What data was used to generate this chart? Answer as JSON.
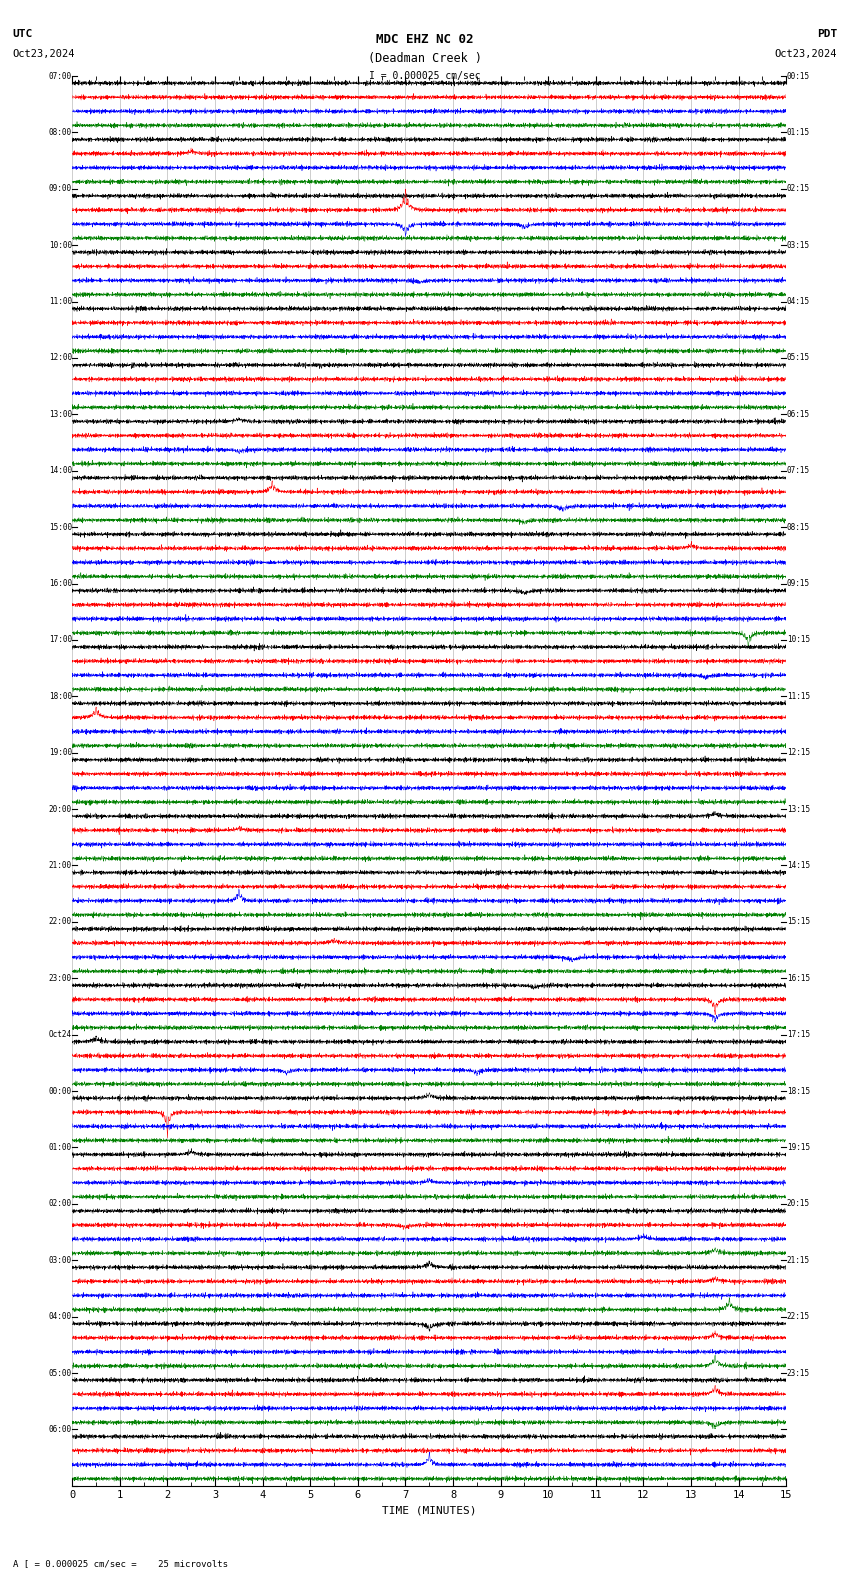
{
  "title_line1": "MDC EHZ NC 02",
  "title_line2": "(Deadman Creek )",
  "scale_label": "I = 0.000025 cm/sec",
  "utc_label": "UTC",
  "utc_date": "Oct23,2024",
  "pdt_label": "PDT",
  "pdt_date": "Oct23,2024",
  "bottom_label": "A [ = 0.000025 cm/sec =    25 microvolts",
  "xlabel": "TIME (MINUTES)",
  "bg_color": "#ffffff",
  "grid_color": "#aaaaaa",
  "trace_colors": [
    "black",
    "red",
    "blue",
    "green"
  ],
  "utc_times_left": [
    "07:00",
    "08:00",
    "09:00",
    "10:00",
    "11:00",
    "12:00",
    "13:00",
    "14:00",
    "15:00",
    "16:00",
    "17:00",
    "18:00",
    "19:00",
    "20:00",
    "21:00",
    "22:00",
    "23:00",
    "Oct24",
    "00:00",
    "01:00",
    "02:00",
    "03:00",
    "04:00",
    "05:00",
    "06:00"
  ],
  "pdt_times_right": [
    "00:15",
    "01:15",
    "02:15",
    "03:15",
    "04:15",
    "05:15",
    "06:15",
    "07:15",
    "08:15",
    "09:15",
    "10:15",
    "11:15",
    "12:15",
    "13:15",
    "14:15",
    "15:15",
    "16:15",
    "17:15",
    "18:15",
    "19:15",
    "20:15",
    "21:15",
    "22:15",
    "23:15"
  ],
  "n_rows": 25,
  "n_traces_per_row": 4,
  "minutes": 15,
  "spm": 200,
  "noise_rows": [
    [
      0.06,
      0.05,
      0.05,
      0.04
    ],
    [
      0.06,
      0.05,
      0.05,
      0.04
    ],
    [
      0.06,
      0.05,
      0.05,
      0.04
    ],
    [
      0.06,
      0.05,
      0.05,
      0.04
    ],
    [
      0.06,
      0.05,
      0.05,
      0.04
    ],
    [
      0.06,
      0.05,
      0.05,
      0.04
    ],
    [
      0.06,
      0.05,
      0.05,
      0.04
    ],
    [
      0.06,
      0.05,
      0.05,
      0.04
    ],
    [
      0.06,
      0.05,
      0.05,
      0.04
    ],
    [
      0.06,
      0.05,
      0.05,
      0.04
    ],
    [
      0.06,
      0.05,
      0.05,
      0.04
    ],
    [
      0.06,
      0.05,
      0.05,
      0.04
    ],
    [
      0.06,
      0.05,
      0.05,
      0.04
    ],
    [
      0.06,
      0.05,
      0.05,
      0.04
    ],
    [
      0.06,
      0.05,
      0.05,
      0.04
    ],
    [
      0.06,
      0.05,
      0.05,
      0.04
    ],
    [
      0.08,
      0.07,
      0.07,
      0.07
    ],
    [
      0.1,
      0.09,
      0.09,
      0.08
    ],
    [
      0.12,
      0.1,
      0.1,
      0.09
    ],
    [
      0.13,
      0.11,
      0.11,
      0.1
    ],
    [
      0.14,
      0.12,
      0.12,
      0.11
    ],
    [
      0.15,
      0.13,
      0.13,
      0.12
    ],
    [
      0.16,
      0.14,
      0.14,
      0.13
    ],
    [
      0.17,
      0.15,
      0.15,
      0.14
    ],
    [
      0.18,
      0.16,
      0.16,
      0.15
    ]
  ],
  "spikes": [
    {
      "row": 1,
      "trace": 1,
      "minute": 2.5,
      "amp": 0.6,
      "decay": 20
    },
    {
      "row": 2,
      "trace": 1,
      "minute": 7.0,
      "amp": 3.5,
      "decay": 15
    },
    {
      "row": 2,
      "trace": 2,
      "minute": 7.0,
      "amp": 2.0,
      "decay": 15
    },
    {
      "row": 2,
      "trace": 2,
      "minute": 9.5,
      "amp": 0.8,
      "decay": 20
    },
    {
      "row": 3,
      "trace": 2,
      "minute": 7.3,
      "amp": 0.5,
      "decay": 20
    },
    {
      "row": 6,
      "trace": 0,
      "minute": 3.5,
      "amp": 0.6,
      "decay": 20
    },
    {
      "row": 6,
      "trace": 2,
      "minute": 3.5,
      "amp": 0.5,
      "decay": 20
    },
    {
      "row": 7,
      "trace": 1,
      "minute": 4.2,
      "amp": 1.8,
      "decay": 15
    },
    {
      "row": 7,
      "trace": 2,
      "minute": 10.3,
      "amp": 0.8,
      "decay": 20
    },
    {
      "row": 7,
      "trace": 3,
      "minute": 9.5,
      "amp": 0.6,
      "decay": 20
    },
    {
      "row": 8,
      "trace": 1,
      "minute": 13.0,
      "amp": 0.8,
      "decay": 20
    },
    {
      "row": 9,
      "trace": 0,
      "minute": 9.5,
      "amp": 0.6,
      "decay": 20
    },
    {
      "row": 9,
      "trace": 3,
      "minute": 14.2,
      "amp": 2.5,
      "decay": 12
    },
    {
      "row": 10,
      "trace": 2,
      "minute": 13.3,
      "amp": 0.6,
      "decay": 20
    },
    {
      "row": 11,
      "trace": 1,
      "minute": 0.5,
      "amp": 1.8,
      "decay": 15
    },
    {
      "row": 13,
      "trace": 1,
      "minute": 3.5,
      "amp": 0.5,
      "decay": 20
    },
    {
      "row": 13,
      "trace": 0,
      "minute": 13.5,
      "amp": 0.7,
      "decay": 20
    },
    {
      "row": 14,
      "trace": 2,
      "minute": 3.5,
      "amp": 2.0,
      "decay": 12
    },
    {
      "row": 15,
      "trace": 1,
      "minute": 5.5,
      "amp": 0.7,
      "decay": 20
    },
    {
      "row": 15,
      "trace": 2,
      "minute": 10.5,
      "amp": 0.8,
      "decay": 20
    },
    {
      "row": 16,
      "trace": 0,
      "minute": 9.7,
      "amp": 0.5,
      "decay": 20
    },
    {
      "row": 16,
      "trace": 1,
      "minute": 13.5,
      "amp": 2.5,
      "decay": 12
    },
    {
      "row": 16,
      "trace": 2,
      "minute": 13.5,
      "amp": 1.5,
      "decay": 15
    },
    {
      "row": 17,
      "trace": 0,
      "minute": 0.5,
      "amp": 0.8,
      "decay": 18
    },
    {
      "row": 17,
      "trace": 2,
      "minute": 4.5,
      "amp": 0.8,
      "decay": 18
    },
    {
      "row": 17,
      "trace": 2,
      "minute": 8.5,
      "amp": 0.7,
      "decay": 20
    },
    {
      "row": 18,
      "trace": 0,
      "minute": 7.5,
      "amp": 0.9,
      "decay": 18
    },
    {
      "row": 18,
      "trace": 1,
      "minute": 2.0,
      "amp": 4.0,
      "decay": 10
    },
    {
      "row": 19,
      "trace": 0,
      "minute": 2.5,
      "amp": 0.7,
      "decay": 20
    },
    {
      "row": 19,
      "trace": 2,
      "minute": 7.5,
      "amp": 0.6,
      "decay": 20
    },
    {
      "row": 20,
      "trace": 1,
      "minute": 7.0,
      "amp": 0.6,
      "decay": 20
    },
    {
      "row": 20,
      "trace": 2,
      "minute": 12.0,
      "amp": 0.7,
      "decay": 20
    },
    {
      "row": 20,
      "trace": 3,
      "minute": 13.5,
      "amp": 0.9,
      "decay": 18
    },
    {
      "row": 21,
      "trace": 0,
      "minute": 7.5,
      "amp": 1.0,
      "decay": 18
    },
    {
      "row": 21,
      "trace": 1,
      "minute": 13.5,
      "amp": 0.7,
      "decay": 20
    },
    {
      "row": 21,
      "trace": 3,
      "minute": 13.8,
      "amp": 1.8,
      "decay": 15
    },
    {
      "row": 22,
      "trace": 0,
      "minute": 7.5,
      "amp": 1.2,
      "decay": 18
    },
    {
      "row": 22,
      "trace": 1,
      "minute": 13.5,
      "amp": 1.0,
      "decay": 18
    },
    {
      "row": 22,
      "trace": 3,
      "minute": 13.5,
      "amp": 1.8,
      "decay": 15
    },
    {
      "row": 23,
      "trace": 1,
      "minute": 13.5,
      "amp": 1.5,
      "decay": 15
    },
    {
      "row": 23,
      "trace": 3,
      "minute": 13.5,
      "amp": 1.0,
      "decay": 18
    },
    {
      "row": 24,
      "trace": 2,
      "minute": 7.5,
      "amp": 2.0,
      "decay": 12
    }
  ]
}
